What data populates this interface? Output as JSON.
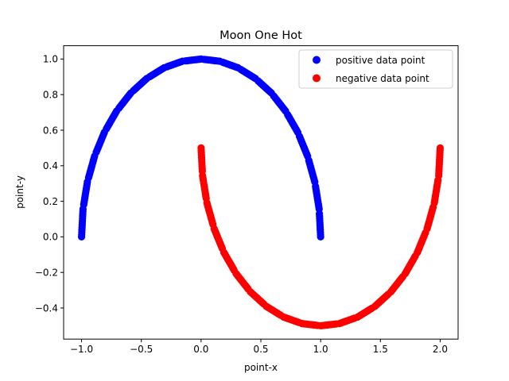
{
  "chart_data": {
    "type": "scatter",
    "title": "Moon One Hot",
    "xlabel": "point-x",
    "ylabel": "point-y",
    "xlim": [
      -1.15,
      2.15
    ],
    "ylim": [
      -0.575,
      1.075
    ],
    "xticks": [
      -1.0,
      -0.5,
      0.0,
      0.5,
      1.0,
      1.5,
      2.0
    ],
    "xtick_labels": [
      "−1.0",
      "−0.5",
      "0.0",
      "0.5",
      "1.0",
      "1.5",
      "2.0"
    ],
    "yticks": [
      -0.4,
      -0.2,
      0.0,
      0.2,
      0.4,
      0.6,
      0.8,
      1.0
    ],
    "ytick_labels": [
      "−0.4",
      "−0.2",
      "0.0",
      "0.2",
      "0.4",
      "0.6",
      "0.8",
      "1.0"
    ],
    "grid": false,
    "legend_position": "upper right",
    "series": [
      {
        "name": "positive data point",
        "color": "#0000ff",
        "points": [
          [
            1.0,
            0.0
          ],
          [
            0.9877,
            0.1564
          ],
          [
            0.9511,
            0.309
          ],
          [
            0.891,
            0.454
          ],
          [
            0.809,
            0.5878
          ],
          [
            0.7071,
            0.7071
          ],
          [
            0.5878,
            0.809
          ],
          [
            0.454,
            0.891
          ],
          [
            0.309,
            0.9511
          ],
          [
            0.1564,
            0.9877
          ],
          [
            0.0,
            1.0
          ],
          [
            -0.1564,
            0.9877
          ],
          [
            -0.309,
            0.9511
          ],
          [
            -0.454,
            0.891
          ],
          [
            -0.5878,
            0.809
          ],
          [
            -0.7071,
            0.7071
          ],
          [
            -0.809,
            0.5878
          ],
          [
            -0.891,
            0.454
          ],
          [
            -0.9511,
            0.309
          ],
          [
            -0.9877,
            0.1564
          ],
          [
            -1.0,
            0.0
          ]
        ]
      },
      {
        "name": "negative data point",
        "color": "#ff0000",
        "points": [
          [
            0.0,
            0.5
          ],
          [
            0.0123,
            0.3436
          ],
          [
            0.0489,
            0.191
          ],
          [
            0.109,
            0.046
          ],
          [
            0.191,
            -0.0878
          ],
          [
            0.2929,
            -0.2071
          ],
          [
            0.4122,
            -0.309
          ],
          [
            0.546,
            -0.391
          ],
          [
            0.691,
            -0.4511
          ],
          [
            0.8436,
            -0.4877
          ],
          [
            1.0,
            -0.5
          ],
          [
            1.1564,
            -0.4877
          ],
          [
            1.309,
            -0.4511
          ],
          [
            1.454,
            -0.391
          ],
          [
            1.5878,
            -0.309
          ],
          [
            1.7071,
            -0.2071
          ],
          [
            1.809,
            -0.0878
          ],
          [
            1.891,
            0.046
          ],
          [
            1.9511,
            0.191
          ],
          [
            1.9877,
            0.3436
          ],
          [
            2.0,
            0.5
          ]
        ]
      }
    ]
  }
}
